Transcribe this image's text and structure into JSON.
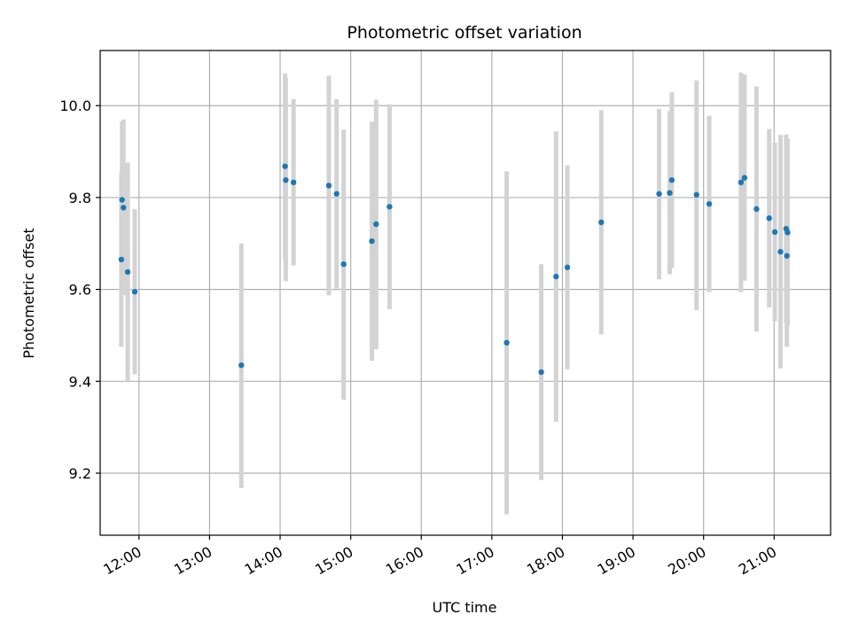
{
  "chart_data": {
    "type": "scatter",
    "title": "Photometric offset variation",
    "xlabel": "UTC time",
    "ylabel": "Photometric offset",
    "x_unit": "UTC hours",
    "xlim": [
      11.45,
      21.8
    ],
    "ylim": [
      9.065,
      10.12
    ],
    "grid": true,
    "xtick_labels": [
      "12:00",
      "13:00",
      "14:00",
      "15:00",
      "16:00",
      "17:00",
      "18:00",
      "19:00",
      "20:00",
      "21:00"
    ],
    "ytick_labels": [
      "9.2",
      "9.4",
      "9.6",
      "9.8",
      "10.0"
    ],
    "marker_color": "#1f77b4",
    "errorbar_color": "#d3d3d3",
    "points": [
      {
        "x": 11.75,
        "y": 9.665,
        "low": 9.475,
        "high": 9.855
      },
      {
        "x": 11.76,
        "y": 9.795,
        "low": 9.625,
        "high": 9.965
      },
      {
        "x": 11.78,
        "y": 9.778,
        "low": 9.588,
        "high": 9.97
      },
      {
        "x": 11.84,
        "y": 9.638,
        "low": 9.4,
        "high": 9.876
      },
      {
        "x": 11.94,
        "y": 9.595,
        "low": 9.415,
        "high": 9.775
      },
      {
        "x": 13.45,
        "y": 9.435,
        "low": 9.168,
        "high": 9.7
      },
      {
        "x": 14.07,
        "y": 9.868,
        "low": 9.666,
        "high": 10.07
      },
      {
        "x": 14.08,
        "y": 9.838,
        "low": 9.618,
        "high": 10.06
      },
      {
        "x": 14.19,
        "y": 9.833,
        "low": 9.652,
        "high": 10.014
      },
      {
        "x": 14.69,
        "y": 9.826,
        "low": 9.587,
        "high": 10.065
      },
      {
        "x": 14.8,
        "y": 9.808,
        "low": 9.602,
        "high": 10.014
      },
      {
        "x": 14.9,
        "y": 9.655,
        "low": 9.36,
        "high": 9.948
      },
      {
        "x": 15.3,
        "y": 9.705,
        "low": 9.445,
        "high": 9.965
      },
      {
        "x": 15.36,
        "y": 9.742,
        "low": 9.47,
        "high": 10.013
      },
      {
        "x": 15.55,
        "y": 9.78,
        "low": 9.557,
        "high": 10.003
      },
      {
        "x": 17.21,
        "y": 9.484,
        "low": 9.11,
        "high": 9.857
      },
      {
        "x": 17.7,
        "y": 9.42,
        "low": 9.185,
        "high": 9.655
      },
      {
        "x": 17.91,
        "y": 9.628,
        "low": 9.312,
        "high": 9.944
      },
      {
        "x": 18.07,
        "y": 9.648,
        "low": 9.426,
        "high": 9.87
      },
      {
        "x": 18.55,
        "y": 9.746,
        "low": 9.502,
        "high": 9.99
      },
      {
        "x": 19.37,
        "y": 9.808,
        "low": 9.622,
        "high": 9.993
      },
      {
        "x": 19.52,
        "y": 9.81,
        "low": 9.633,
        "high": 9.988
      },
      {
        "x": 19.55,
        "y": 9.838,
        "low": 9.647,
        "high": 10.029
      },
      {
        "x": 19.9,
        "y": 9.806,
        "low": 9.555,
        "high": 10.055
      },
      {
        "x": 20.08,
        "y": 9.786,
        "low": 9.594,
        "high": 9.978
      },
      {
        "x": 20.53,
        "y": 9.833,
        "low": 9.594,
        "high": 10.072
      },
      {
        "x": 20.58,
        "y": 9.843,
        "low": 9.619,
        "high": 10.068
      },
      {
        "x": 20.75,
        "y": 9.775,
        "low": 9.508,
        "high": 10.042
      },
      {
        "x": 20.93,
        "y": 9.755,
        "low": 9.561,
        "high": 9.949
      },
      {
        "x": 21.01,
        "y": 9.725,
        "low": 9.53,
        "high": 9.92
      },
      {
        "x": 21.09,
        "y": 9.682,
        "low": 9.428,
        "high": 9.936
      },
      {
        "x": 21.17,
        "y": 9.732,
        "low": 9.527,
        "high": 9.937
      },
      {
        "x": 21.19,
        "y": 9.724,
        "low": 9.52,
        "high": 9.928
      },
      {
        "x": 21.18,
        "y": 9.673,
        "low": 9.475,
        "high": 9.87
      }
    ]
  }
}
